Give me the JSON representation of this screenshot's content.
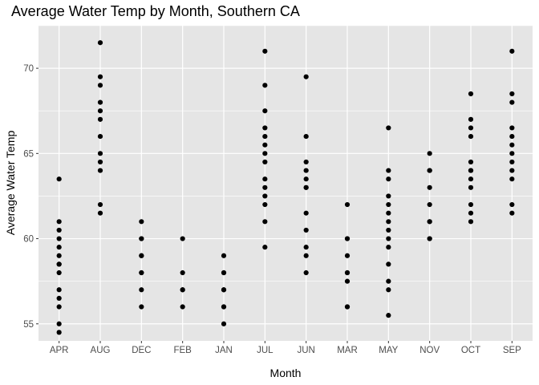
{
  "chart_data": {
    "type": "scatter",
    "title": "Average Water Temp by Month, Southern CA",
    "xlabel": "Month",
    "ylabel": "Average Water Temp",
    "categories": [
      "APR",
      "AUG",
      "DEC",
      "FEB",
      "JAN",
      "JUL",
      "JUN",
      "MAR",
      "MAY",
      "NOV",
      "OCT",
      "SEP"
    ],
    "ylim": [
      54,
      72.5
    ],
    "yticks": [
      55,
      60,
      65,
      70
    ],
    "grid": true,
    "background": "#e5e5e5",
    "grid_color": "#ffffff",
    "point_color": "#000000",
    "points": {
      "APR": [
        63.5,
        61,
        60.5,
        60,
        59.5,
        59,
        58.5,
        58.5,
        58,
        57,
        56.5,
        56,
        55,
        54.5
      ],
      "AUG": [
        71.5,
        69.5,
        69,
        68,
        67.5,
        67,
        66,
        65,
        64.5,
        64,
        62,
        61.5
      ],
      "DEC": [
        61,
        60,
        60,
        59,
        59,
        58,
        58,
        57,
        56
      ],
      "FEB": [
        60,
        58,
        57,
        57,
        56
      ],
      "JAN": [
        59,
        58,
        58,
        57,
        57,
        56,
        56,
        55
      ],
      "JUL": [
        71,
        69,
        67.5,
        66.5,
        66,
        65.5,
        65,
        64.5,
        63.5,
        63,
        62.5,
        62,
        61,
        59.5
      ],
      "JUN": [
        69.5,
        66,
        64.5,
        64,
        63.5,
        63,
        63,
        61.5,
        60.5,
        59.5,
        59,
        58
      ],
      "MAR": [
        62,
        60,
        60,
        59,
        58,
        58,
        57.5,
        56,
        56
      ],
      "MAY": [
        66.5,
        64,
        63.5,
        62.5,
        62,
        61.5,
        61,
        60.5,
        60,
        59.5,
        58.5,
        57.5,
        57,
        55.5
      ],
      "NOV": [
        65,
        64,
        64,
        63,
        62,
        61,
        61,
        60,
        60
      ],
      "OCT": [
        68.5,
        67,
        66.5,
        66,
        64.5,
        64,
        64,
        63.5,
        63,
        62,
        61.5,
        61
      ],
      "SEP": [
        71,
        68.5,
        68,
        66.5,
        66,
        65.5,
        65,
        64.5,
        64,
        63.5,
        62,
        61.5
      ]
    }
  }
}
